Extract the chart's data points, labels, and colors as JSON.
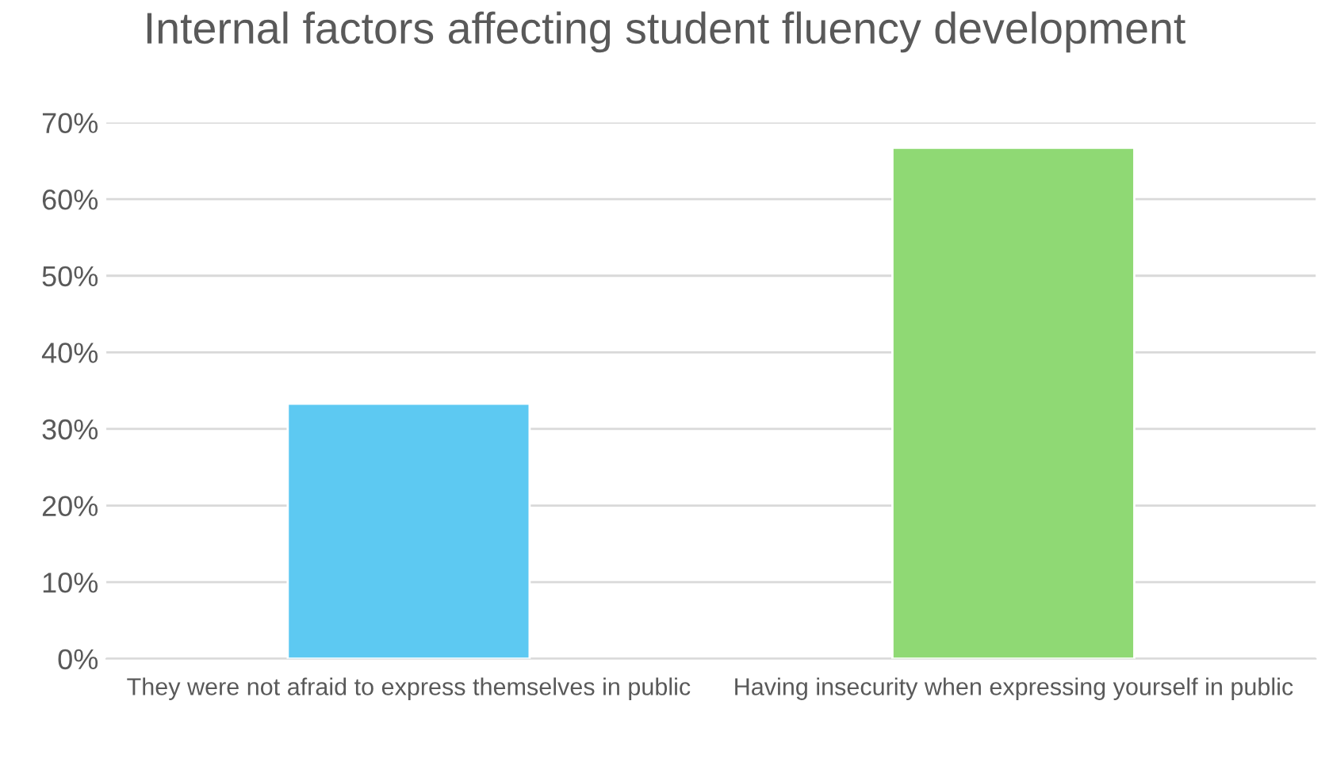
{
  "chart_data": {
    "type": "bar",
    "title": "Internal factors affecting student fluency development",
    "categories": [
      "They were not afraid to express themselves in public",
      "Having insecurity when expressing yourself in public"
    ],
    "values": [
      33.3,
      66.7
    ],
    "colors": [
      "#5dc9f2",
      "#8fd974"
    ],
    "ylim": [
      0,
      70
    ],
    "yticks": [
      {
        "value": 0,
        "label": "0%"
      },
      {
        "value": 10,
        "label": "10%"
      },
      {
        "value": 20,
        "label": "20%"
      },
      {
        "value": 30,
        "label": "30%"
      },
      {
        "value": 40,
        "label": "40%"
      },
      {
        "value": 50,
        "label": "50%"
      },
      {
        "value": 60,
        "label": "60%"
      },
      {
        "value": 70,
        "label": "70%"
      }
    ],
    "grid": "y"
  }
}
